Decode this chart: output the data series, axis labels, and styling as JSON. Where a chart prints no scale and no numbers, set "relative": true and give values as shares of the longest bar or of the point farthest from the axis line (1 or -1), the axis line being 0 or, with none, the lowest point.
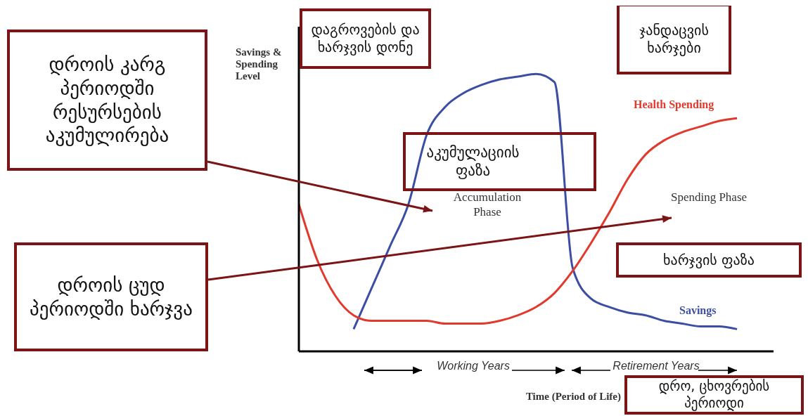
{
  "chart_data": {
    "type": "line",
    "relative": true,
    "ylabel": "Savings & Spending Level",
    "xlabel": "Time (Period of Life)",
    "legend": false,
    "grid": false,
    "marker": "none",
    "line_style": "solid",
    "categories": [
      null,
      null,
      null,
      null,
      null,
      null,
      null,
      null,
      null,
      null,
      null,
      null,
      null,
      null,
      null,
      null,
      null,
      null,
      null,
      null,
      null,
      null,
      null,
      null,
      null
    ],
    "series": [
      {
        "name": "Savings",
        "color": "#3b4ea3",
        "values": [
          null,
          null,
          null,
          0.08,
          0.23,
          0.38,
          0.53,
          0.78,
          0.88,
          0.93,
          0.96,
          0.98,
          0.99,
          1,
          0.97,
          0.3,
          0.19,
          0.16,
          0.14,
          0.13,
          0.11,
          0.1,
          0.09,
          0.09,
          0.08
        ]
      },
      {
        "name": "Health Spending",
        "color": "#e2392d",
        "values": [
          0.53,
          0.33,
          0.2,
          0.13,
          0.11,
          0.11,
          0.11,
          0.11,
          0.1,
          0.1,
          0.1,
          0.11,
          0.13,
          0.16,
          0.21,
          0.29,
          0.39,
          0.5,
          0.62,
          0.71,
          0.76,
          0.79,
          0.81,
          0.83,
          0.84
        ]
      }
    ],
    "annotations": [
      "Accumulation Phase",
      "Spending Phase",
      "Working Years",
      "Retirement Years",
      "დაგროვების და ხარჯვის დონე",
      "ჯანდაცვის ხარჯები",
      "დროის კარგ პერიოდში რესურსების აკუმულირება",
      "აკუმულაციის ფაზა",
      "დროის ცუდ პერიოდში ხარჯვა",
      "ხარჯვის ფაზა",
      "დრო, ცხოვრების პერიოდი"
    ]
  }
}
